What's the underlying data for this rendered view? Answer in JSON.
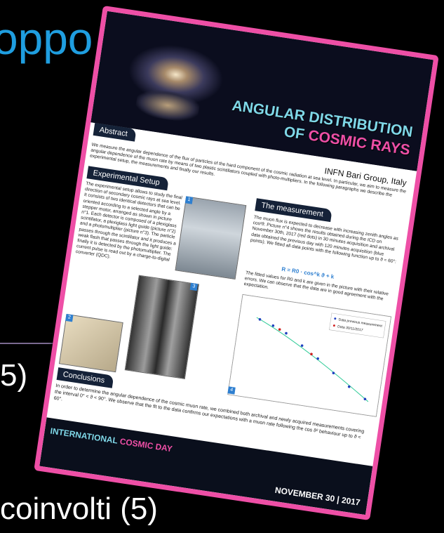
{
  "slide": {
    "heading_fragment": "oppo",
    "line_fragment": "5)",
    "bottom_fragment": "coinvolti (5)"
  },
  "poster": {
    "title_line1": "ANGULAR DISTRIBUTION",
    "title_of": "OF",
    "title_highlight": "COSMIC RAYS",
    "author": "INFN Bari Group, Italy",
    "abstract": {
      "heading": "Abstract",
      "text": "We measure the angular dependence of the flux of particles of the hard component of the cosmic radiation at sea level. In particular, we aim to measure the angular dependence of the muon rate by means of two plastic scintillators coupled with photo-multipliers. In the following paragraphs we describe the experimental setup, the measurements and finally our results."
    },
    "setup": {
      "heading": "Experimental Setup",
      "text": "The experimental setup allows to study the final direction of secondary cosmic rays at sea level. It consists of two identical detectors that can be oriented according to a selected angle by a stepper motor, arranged as shown in picture n°1. Each detector is composed of a plexiglass scintillator, a plexiglass light guide (picture n°2) and a photomultiplier (picture n°3). The particle passes through the scintillator and it produces a weak flash that passes through the light guide: finally it is detected by the photomultiplier. The current pulse is read out by a charge-to-digital converter (QDC).",
      "picture_numbers": [
        "1",
        "2",
        "3"
      ]
    },
    "measurement": {
      "heading": "The measurement",
      "text": "The muon flux is expected to decrease with increasing zenith angles as cos²ϑ. Picture n°4 shows the results obtained during the ICD on November 30th, 2017 (red dots) in 30 minutes acquisition and archival data obtained the previous day with 120 minutes acquisition (blue points). We fitted all data points with the following function up to ϑ = 60°:",
      "formula": "R = R0 · cos^k ϑ + k",
      "text2": "The fitted values for R0 and k are given in the picture with their relative errors. We can observe that the data are in good agreement with the expectation.",
      "picture_number": "4",
      "plot_legend": [
        "Data previous measurement",
        "Data 30/11/2017"
      ]
    },
    "conclusions": {
      "heading": "Conclusions",
      "text": "In order to determine the angular dependence of the cosmic muon rate, we combined both archival and newly acquired measurements covering the interval 0° < ϑ < 90°. We observe that the fit to the data confirms our expectations with a muon rate following the cos ϑ² behaviour up to ϑ < 60°."
    },
    "footer_left": "INTERNATIONAL",
    "footer_left_highlight": "COSMIC DAY",
    "footer_date": "NOVEMBER 30 | 2017"
  }
}
